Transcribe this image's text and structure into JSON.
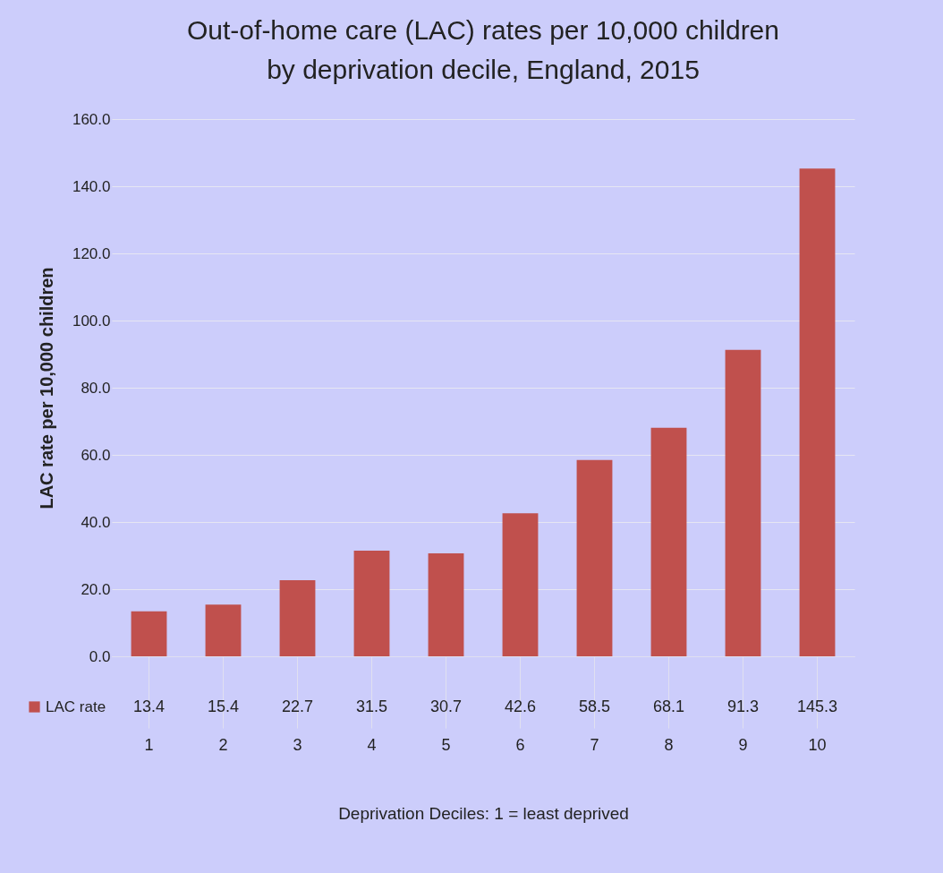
{
  "chart_data": {
    "type": "bar",
    "title": "Out-of-home care (LAC) rates per 10,000 children\nby deprivation decile, England, 2015",
    "xlabel": "Deprivation Deciles: 1 = least deprived",
    "ylabel": "LAC rate per 10,000 children",
    "categories": [
      "1",
      "2",
      "3",
      "4",
      "5",
      "6",
      "7",
      "8",
      "9",
      "10"
    ],
    "series": [
      {
        "name": "LAC rate",
        "color": "#c0504d",
        "values": [
          13.4,
          15.4,
          22.7,
          31.5,
          30.7,
          42.6,
          58.5,
          68.1,
          91.3,
          145.3
        ]
      }
    ],
    "ylim": [
      0,
      160
    ],
    "yticks": [
      {
        "value": 0,
        "label": "0.0"
      },
      {
        "value": 20,
        "label": "20.0"
      },
      {
        "value": 40,
        "label": "40.0"
      },
      {
        "value": 60,
        "label": "60.0"
      },
      {
        "value": 80,
        "label": "80.0"
      },
      {
        "value": 100,
        "label": "100.0"
      },
      {
        "value": 120,
        "label": "120.0"
      },
      {
        "value": 140,
        "label": "140.0"
      },
      {
        "value": 160,
        "label": "160.0"
      }
    ],
    "grid": "y",
    "legend": "bottom left",
    "data_labels": true
  }
}
